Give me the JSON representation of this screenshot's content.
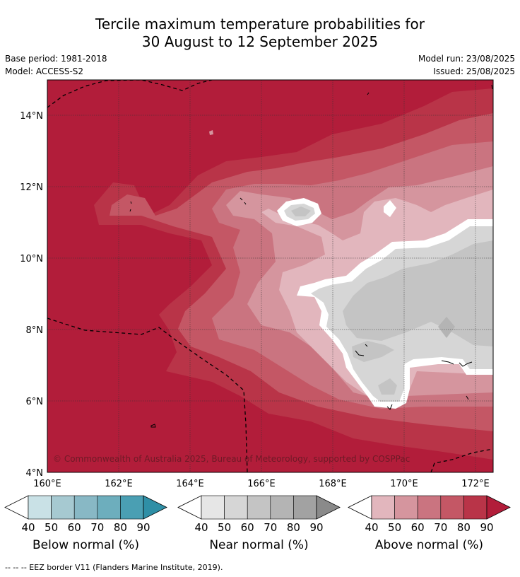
{
  "title_line1": "Tercile maximum temperature probabilities for",
  "title_line2": "30 August to 12 September 2025",
  "base_period": "Base period: 1981-2018",
  "model": "Model: ACCESS-S2",
  "model_run": "Model run: 23/08/2025",
  "issued": "Issued: 25/08/2025",
  "copyright": "© Commonwealth of Australia 2025, Bureau of Meteorology, supported by COSPPac",
  "lat_labels": [
    "14°N",
    "12°N",
    "10°N",
    "8°N",
    "6°N",
    "4°N"
  ],
  "lon_labels": [
    "160°E",
    "162°E",
    "164°E",
    "166°E",
    "168°E",
    "170°E",
    "172°E"
  ],
  "legends": [
    {
      "title": "Below normal (%)",
      "ticks": [
        "40",
        "50",
        "60",
        "70",
        "80",
        "90"
      ],
      "colors": [
        "#c9e1e6",
        "#a6c9d1",
        "#88b8c5",
        "#6daebd",
        "#4a9fb3",
        "#2f8fa6"
      ]
    },
    {
      "title": "Near normal (%)",
      "ticks": [
        "40",
        "50",
        "60",
        "70",
        "80",
        "90"
      ],
      "colors": [
        "#e6e6e6",
        "#d6d6d6",
        "#c4c4c4",
        "#b4b4b4",
        "#a2a2a2",
        "#8a8a8a"
      ]
    },
    {
      "title": "Above normal (%)",
      "ticks": [
        "40",
        "50",
        "60",
        "70",
        "80",
        "90"
      ],
      "colors": [
        "#e2b6bd",
        "#d5959e",
        "#ca7480",
        "#c45765",
        "#b93448",
        "#b21d3a"
      ]
    }
  ],
  "footnote": "-- -- -- EEZ border V11 (Flanders Marine Institute, 2019)."
}
